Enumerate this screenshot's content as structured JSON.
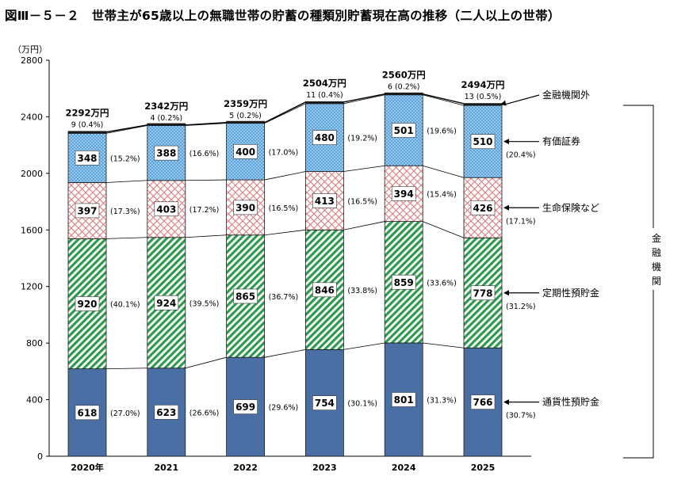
{
  "title": "図Ⅲ－５－２　世帯主が65歳以上の無職世帯の貯蓄の種類別貯蓄現在高の推移（二人以上の世帯）",
  "colors": {
    "cash": "#4a6fa5",
    "time": "#2e9a4e",
    "life": "#e07a7a",
    "sec": "#4d9ad6",
    "other": "#1a1a1a",
    "border": "#1a1a1a"
  },
  "chart_data": {
    "type": "bar",
    "stacked": true,
    "ylabel": "（万円）",
    "ylim": [
      0,
      2800
    ],
    "yticks": [
      0,
      400,
      800,
      1200,
      1600,
      2000,
      2400,
      2800
    ],
    "categories": [
      "2020年",
      "2021",
      "2022",
      "2023",
      "2024",
      "2025"
    ],
    "totals": [
      "2292万円",
      "2342万円",
      "2359万円",
      "2504万円",
      "2560万円",
      "2494万円"
    ],
    "series": [
      {
        "name": "通貨性預貯金",
        "key": "cash",
        "values": [
          618,
          623,
          699,
          754,
          801,
          766
        ],
        "shares": [
          "(27.0%)",
          "(26.6%)",
          "(29.6%)",
          "(30.1%)",
          "(31.3%)",
          "(30.7%)"
        ]
      },
      {
        "name": "定期性預貯金",
        "key": "time",
        "values": [
          920,
          924,
          865,
          846,
          859,
          778
        ],
        "shares": [
          "(40.1%)",
          "(39.5%)",
          "(36.7%)",
          "(33.8%)",
          "(33.6%)",
          "(31.2%)"
        ]
      },
      {
        "name": "生命保険など",
        "key": "life",
        "values": [
          397,
          403,
          390,
          413,
          394,
          426
        ],
        "shares": [
          "(17.3%)",
          "(17.2%)",
          "(16.5%)",
          "(16.5%)",
          "(15.4%)",
          "(17.1%)"
        ]
      },
      {
        "name": "有価証券",
        "key": "sec",
        "values": [
          348,
          388,
          400,
          480,
          501,
          510
        ],
        "shares": [
          "(15.2%)",
          "(16.6%)",
          "(17.0%)",
          "(19.2%)",
          "(19.6%)",
          "(20.4%)"
        ]
      },
      {
        "name": "金融機関外",
        "key": "other",
        "values": [
          9,
          4,
          5,
          11,
          6,
          13
        ],
        "shares": [
          "(0.4%)",
          "(0.2%)",
          "(0.2%)",
          "(0.4%)",
          "(0.2%)",
          "(0.5%)"
        ]
      }
    ],
    "bracket_label": "金融機関",
    "grid": false,
    "legend_position": "right"
  }
}
